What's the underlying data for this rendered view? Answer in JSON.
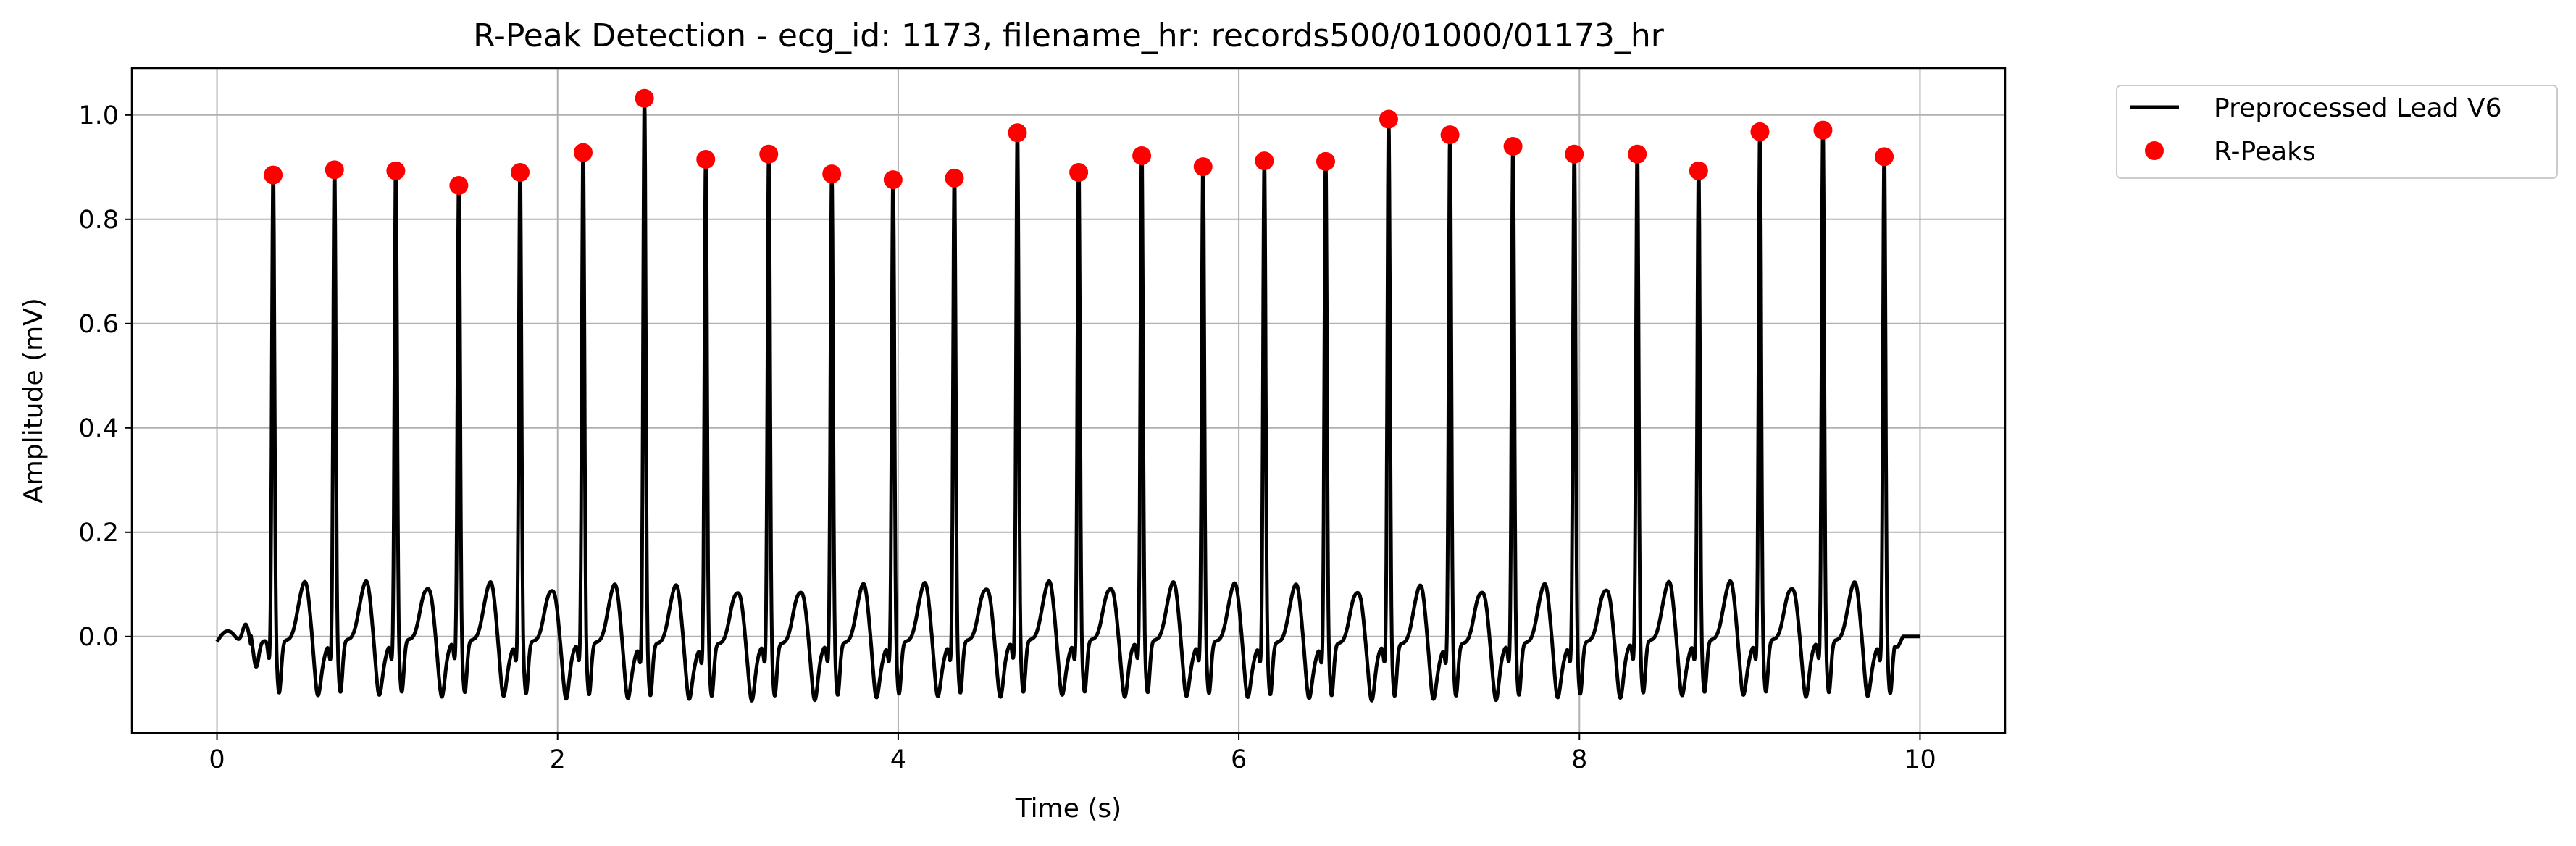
{
  "chart_data": {
    "type": "line",
    "title": "R-Peak Detection - ecg_id: 1173, filename_hr: records500/01000/01173_hr",
    "xlabel": "Time (s)",
    "ylabel": "Amplitude (mV)",
    "xlim": [
      -0.5,
      10.5
    ],
    "ylim": [
      -0.185,
      1.09
    ],
    "xticks": [
      0,
      2,
      4,
      6,
      8,
      10
    ],
    "xtick_labels": [
      "0",
      "2",
      "4",
      "6",
      "8",
      "10"
    ],
    "yticks": [
      0.0,
      0.2,
      0.4,
      0.6,
      0.8,
      1.0
    ],
    "ytick_labels": [
      "0.0",
      "0.2",
      "0.4",
      "0.6",
      "0.8",
      "1.0"
    ],
    "grid": true,
    "legend_position": "outside-top-right",
    "series": [
      {
        "name": "Preprocessed Lead V6",
        "kind": "line",
        "color": "#000000"
      },
      {
        "name": "R-Peaks",
        "kind": "scatter",
        "color": "#ff0000",
        "x": [
          0.33,
          0.69,
          1.05,
          1.42,
          1.78,
          2.15,
          2.51,
          2.87,
          3.24,
          3.61,
          3.97,
          4.33,
          4.7,
          5.06,
          5.43,
          5.79,
          6.15,
          6.51,
          6.88,
          7.24,
          7.61,
          7.97,
          8.34,
          8.7,
          9.06,
          9.43,
          9.79
        ],
        "y": [
          0.885,
          0.895,
          0.893,
          0.865,
          0.89,
          0.928,
          1.032,
          0.915,
          0.925,
          0.887,
          0.876,
          0.879,
          0.966,
          0.89,
          0.922,
          0.901,
          0.912,
          0.911,
          0.992,
          0.962,
          0.94,
          0.925,
          0.925,
          0.893,
          0.968,
          0.971,
          0.92
        ]
      }
    ]
  }
}
